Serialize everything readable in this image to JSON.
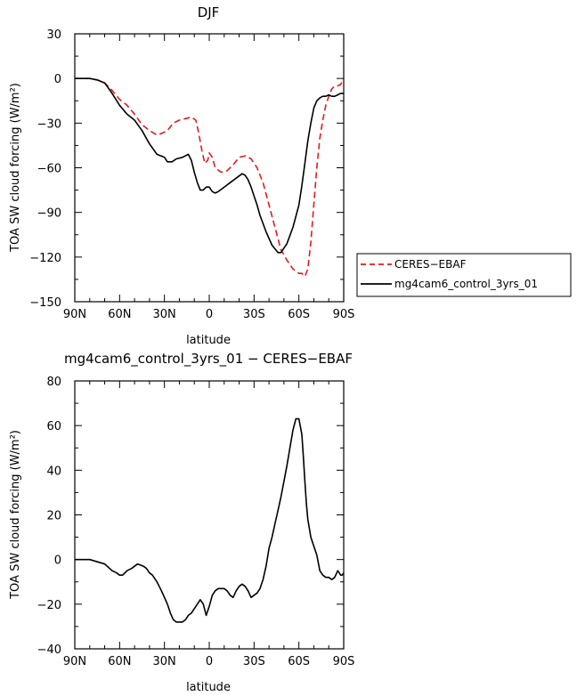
{
  "chart_data": [
    {
      "type": "line",
      "title": "DJF",
      "xlabel": "latitude",
      "ylabel": "TOA SW cloud forcing (W/m²)",
      "xlim": [
        90,
        -90
      ],
      "ylim": [
        -150,
        30
      ],
      "x_ticks": [
        90,
        60,
        30,
        0,
        -30,
        -60,
        -90
      ],
      "x_tick_labels": [
        "90N",
        "60N",
        "30N",
        "0",
        "30S",
        "60S",
        "90S"
      ],
      "y_ticks": [
        -150,
        -120,
        -90,
        -60,
        -30,
        0,
        30
      ],
      "y_tick_labels": [
        "−150",
        "−120",
        "−90",
        "−60",
        "−30",
        "0",
        "30"
      ],
      "legend": "right",
      "series": [
        {
          "name": "CERES−EBAF",
          "color": "#e41a1c",
          "dash": "dashed",
          "x": [
            90,
            85,
            80,
            75,
            70,
            65,
            60,
            55,
            50,
            45,
            40,
            35,
            32,
            28,
            24,
            20,
            16,
            12,
            9,
            7,
            5,
            3,
            1,
            0,
            -2,
            -4,
            -8,
            -12,
            -16,
            -20,
            -24,
            -28,
            -32,
            -36,
            -40,
            -44,
            -48,
            -52,
            -56,
            -60,
            -62,
            -64,
            -66,
            -68,
            -70,
            -72,
            -74,
            -76,
            -78,
            -80,
            -82,
            -84,
            -86,
            -88,
            -89,
            -90
          ],
          "y": [
            0,
            0,
            0,
            -1,
            -3,
            -8,
            -14,
            -18,
            -24,
            -31,
            -35,
            -38,
            -37,
            -35,
            -30,
            -28,
            -27,
            -26,
            -28,
            -37,
            -48,
            -57,
            -55,
            -50,
            -53,
            -60,
            -63,
            -62,
            -58,
            -53,
            -52,
            -54,
            -60,
            -70,
            -85,
            -100,
            -115,
            -122,
            -128,
            -131,
            -131,
            -133,
            -128,
            -110,
            -85,
            -60,
            -40,
            -28,
            -18,
            -12,
            -7,
            -5,
            -5,
            -4,
            -2,
            -3
          ]
        },
        {
          "name": "mg4cam6_control_3yrs_01",
          "color": "#000000",
          "dash": "solid",
          "x": [
            90,
            85,
            80,
            75,
            70,
            65,
            60,
            55,
            50,
            45,
            40,
            35,
            30,
            28,
            25,
            22,
            18,
            14,
            12,
            10,
            8,
            6,
            4,
            2,
            0,
            -2,
            -4,
            -6,
            -10,
            -14,
            -18,
            -22,
            -24,
            -26,
            -28,
            -30,
            -32,
            -34,
            -38,
            -42,
            -46,
            -48,
            -52,
            -56,
            -60,
            -62,
            -64,
            -66,
            -68,
            -70,
            -72,
            -74,
            -76,
            -78,
            -80,
            -82,
            -84,
            -86,
            -88,
            -90
          ],
          "y": [
            0,
            0,
            0,
            -1,
            -3,
            -10,
            -18,
            -24,
            -28,
            -35,
            -44,
            -51,
            -53,
            -56,
            -56,
            -54,
            -53,
            -51,
            -55,
            -63,
            -70,
            -75,
            -75,
            -73,
            -73,
            -76,
            -77,
            -76,
            -73,
            -70,
            -67,
            -64,
            -65,
            -68,
            -73,
            -79,
            -85,
            -92,
            -103,
            -112,
            -117,
            -117,
            -111,
            -100,
            -85,
            -72,
            -57,
            -42,
            -30,
            -20,
            -15,
            -13,
            -12,
            -12,
            -11,
            -12,
            -12,
            -11,
            -10,
            -10
          ]
        }
      ]
    },
    {
      "type": "line",
      "title": "mg4cam6_control_3yrs_01 − CERES−EBAF",
      "xlabel": "latitude",
      "ylabel": "TOA SW cloud forcing (W/m²)",
      "xlim": [
        90,
        -90
      ],
      "ylim": [
        -40,
        80
      ],
      "x_ticks": [
        90,
        60,
        30,
        0,
        -30,
        -60,
        -90
      ],
      "x_tick_labels": [
        "90N",
        "60N",
        "30N",
        "0",
        "30S",
        "60S",
        "90S"
      ],
      "y_ticks": [
        -40,
        -20,
        0,
        20,
        40,
        60,
        80
      ],
      "y_tick_labels": [
        "−40",
        "−20",
        "0",
        "20",
        "40",
        "60",
        "80"
      ],
      "series": [
        {
          "color": "#000000",
          "dash": "solid",
          "x": [
            90,
            85,
            80,
            75,
            70,
            65,
            62,
            60,
            58,
            55,
            52,
            50,
            48,
            46,
            44,
            42,
            40,
            38,
            35,
            32,
            30,
            28,
            26,
            24,
            22,
            20,
            18,
            16,
            14,
            12,
            10,
            8,
            6,
            4,
            2,
            0,
            -2,
            -4,
            -6,
            -8,
            -10,
            -12,
            -14,
            -16,
            -18,
            -20,
            -22,
            -24,
            -26,
            -28,
            -30,
            -32,
            -34,
            -36,
            -38,
            -40,
            -42,
            -44,
            -46,
            -48,
            -50,
            -52,
            -54,
            -56,
            -58,
            -60,
            -62,
            -63,
            -64,
            -65,
            -66,
            -67,
            -68,
            -70,
            -72,
            -74,
            -76,
            -78,
            -80,
            -82,
            -84,
            -86,
            -87,
            -88,
            -89,
            -90
          ],
          "y": [
            0,
            0,
            0,
            -1,
            -2,
            -5,
            -6,
            -7,
            -7,
            -5,
            -4,
            -3,
            -2,
            -2.5,
            -3,
            -4,
            -6,
            -7,
            -10,
            -14,
            -17,
            -20,
            -24,
            -27,
            -28,
            -28,
            -28,
            -27,
            -25,
            -24,
            -22,
            -20,
            -18,
            -20,
            -25,
            -21,
            -16,
            -14,
            -13,
            -13,
            -13,
            -14,
            -16,
            -17,
            -14,
            -12,
            -11,
            -12,
            -14,
            -17,
            -16,
            -15,
            -13,
            -9,
            -3,
            5,
            10,
            16,
            22,
            28,
            35,
            42,
            50,
            58,
            63,
            63,
            56,
            46,
            35,
            25,
            18,
            14,
            10,
            6,
            2,
            -5,
            -7,
            -8,
            -8,
            -9,
            -8,
            -5,
            -6,
            -7,
            -7,
            -6
          ]
        }
      ]
    }
  ]
}
